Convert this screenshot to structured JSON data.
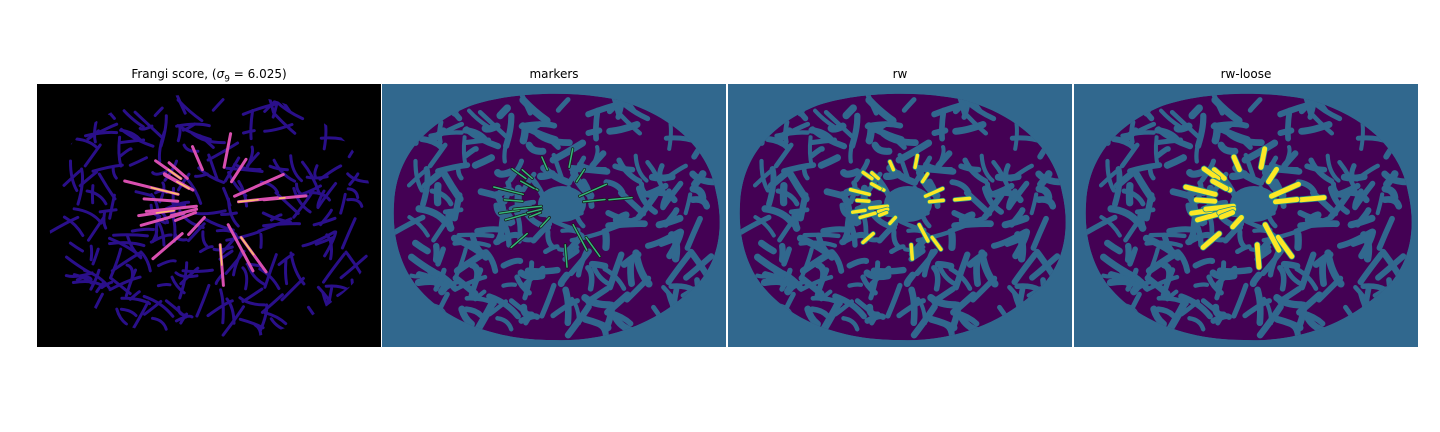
{
  "panels": [
    {
      "id": "frangi",
      "title_prefix": "Frangi score, (",
      "title_sigma": "σ",
      "title_sub": "9",
      "title_suffix": " = 6.025)",
      "colors": {
        "background": "#000000",
        "blob": "#2a0f8a",
        "vessel": "#d94fb0",
        "vessel_hot": "#fcc06a"
      }
    },
    {
      "id": "markers",
      "title": "markers",
      "colors": {
        "background": "#31688e",
        "foreground": "#440154",
        "marker": "#35b779"
      }
    },
    {
      "id": "rw",
      "title": "rw",
      "colors": {
        "background": "#31688e",
        "foreground": "#440154",
        "segment": "#fde725",
        "segment_edge": "#21918c"
      }
    },
    {
      "id": "rw-loose",
      "title": "rw-loose",
      "colors": {
        "background": "#31688e",
        "foreground": "#440154",
        "segment": "#fde725",
        "segment_edge": "#21918c"
      }
    }
  ]
}
